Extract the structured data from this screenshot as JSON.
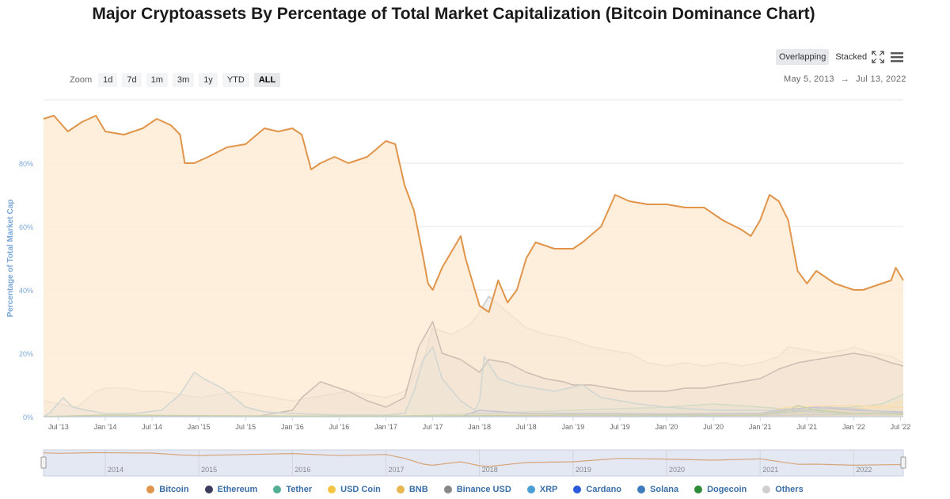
{
  "header": {
    "title": "Major Cryptoassets By Percentage of Total Market Capitalization (Bitcoin Dominance Chart)"
  },
  "toolbar": {
    "modes": [
      {
        "label": "Overlapping",
        "active": true
      },
      {
        "label": "Stacked",
        "active": false
      }
    ],
    "expand_icon": "expand-icon",
    "menu_icon": "menu-icon"
  },
  "zoom": {
    "label": "Zoom",
    "buttons": [
      {
        "label": "1d",
        "active": false
      },
      {
        "label": "7d",
        "active": false
      },
      {
        "label": "1m",
        "active": false
      },
      {
        "label": "3m",
        "active": false
      },
      {
        "label": "1y",
        "active": false
      },
      {
        "label": "YTD",
        "active": false
      },
      {
        "label": "ALL",
        "active": true
      }
    ]
  },
  "date_range": {
    "from": "May 5, 2013",
    "arrow": "→",
    "to": "Jul 13, 2022"
  },
  "chart_data": {
    "type": "area",
    "ylabel": "Percentage of Total Market Cap",
    "ylim": [
      0,
      100
    ],
    "yticks": [
      {
        "value": 0,
        "label": "0%"
      },
      {
        "value": 20,
        "label": "20%"
      },
      {
        "value": 40,
        "label": "40%"
      },
      {
        "value": 60,
        "label": "60%"
      },
      {
        "value": 80,
        "label": "80%"
      }
    ],
    "xlim": [
      2013.34,
      2022.53
    ],
    "xticks": [
      {
        "value": 2013.5,
        "label": "Jul '13"
      },
      {
        "value": 2014.0,
        "label": "Jan '14"
      },
      {
        "value": 2014.5,
        "label": "Jul '14"
      },
      {
        "value": 2015.0,
        "label": "Jan '15"
      },
      {
        "value": 2015.5,
        "label": "Jul '15"
      },
      {
        "value": 2016.0,
        "label": "Jan '16"
      },
      {
        "value": 2016.5,
        "label": "Jul '16"
      },
      {
        "value": 2017.0,
        "label": "Jan '17"
      },
      {
        "value": 2017.5,
        "label": "Jul '17"
      },
      {
        "value": 2018.0,
        "label": "Jan '18"
      },
      {
        "value": 2018.5,
        "label": "Jul '18"
      },
      {
        "value": 2019.0,
        "label": "Jan '19"
      },
      {
        "value": 2019.5,
        "label": "Jul '19"
      },
      {
        "value": 2020.0,
        "label": "Jan '20"
      },
      {
        "value": 2020.5,
        "label": "Jul '20"
      },
      {
        "value": 2021.0,
        "label": "Jan '21"
      },
      {
        "value": 2021.5,
        "label": "Jul '21"
      },
      {
        "value": 2022.0,
        "label": "Jan '22"
      },
      {
        "value": 2022.5,
        "label": "Jul '22"
      }
    ],
    "navigator_labels": [
      {
        "value": 2014,
        "label": "2014"
      },
      {
        "value": 2015,
        "label": "2015"
      },
      {
        "value": 2016,
        "label": "2016"
      },
      {
        "value": 2017,
        "label": "2017"
      },
      {
        "value": 2018,
        "label": "2018"
      },
      {
        "value": 2019,
        "label": "2019"
      },
      {
        "value": 2020,
        "label": "2020"
      },
      {
        "value": 2021,
        "label": "2021"
      },
      {
        "value": 2022,
        "label": "2022"
      }
    ],
    "series": [
      {
        "name": "Others",
        "color": "#c9c9c9",
        "fill": "#dcdcdc",
        "fill_opacity": 0.45,
        "x": [
          2013.34,
          2013.5,
          2013.7,
          2013.9,
          2014.0,
          2014.2,
          2014.4,
          2014.6,
          2014.8,
          2015.0,
          2015.2,
          2015.4,
          2015.6,
          2015.8,
          2016.0,
          2016.2,
          2016.4,
          2016.6,
          2016.8,
          2017.0,
          2017.2,
          2017.4,
          2017.5,
          2017.7,
          2017.9,
          2018.0,
          2018.1,
          2018.3,
          2018.5,
          2018.7,
          2018.9,
          2019.0,
          2019.2,
          2019.4,
          2019.6,
          2019.8,
          2020.0,
          2020.2,
          2020.4,
          2020.6,
          2020.8,
          2021.0,
          2021.2,
          2021.3,
          2021.5,
          2021.7,
          2021.9,
          2022.0,
          2022.2,
          2022.4,
          2022.53
        ],
        "y": [
          5,
          4,
          3,
          8,
          9,
          9,
          8,
          8,
          7,
          6,
          7,
          8,
          7,
          6,
          5,
          6,
          7,
          8,
          7,
          6,
          8,
          18,
          28,
          26,
          29,
          33,
          38,
          33,
          28,
          26,
          25,
          24,
          22,
          21,
          20,
          17,
          16,
          17,
          16,
          17,
          16,
          17,
          19,
          22,
          21,
          20,
          21,
          22,
          20,
          19,
          17
        ]
      },
      {
        "name": "Ethereum",
        "color": "#3c3c5c",
        "fill": "#9a9ab0",
        "fill_opacity": 0.25,
        "x": [
          2013.34,
          2015.6,
          2015.8,
          2016.0,
          2016.1,
          2016.3,
          2016.4,
          2016.6,
          2016.8,
          2017.0,
          2017.2,
          2017.35,
          2017.5,
          2017.6,
          2017.8,
          2018.0,
          2018.1,
          2018.3,
          2018.5,
          2018.7,
          2018.9,
          2019.0,
          2019.2,
          2019.4,
          2019.6,
          2019.8,
          2020.0,
          2020.2,
          2020.4,
          2020.6,
          2020.8,
          2021.0,
          2021.2,
          2021.4,
          2021.6,
          2021.8,
          2022.0,
          2022.2,
          2022.4,
          2022.53
        ],
        "y": [
          0,
          0,
          1,
          2,
          6,
          11,
          10,
          8,
          5,
          3,
          6,
          22,
          30,
          20,
          18,
          14,
          18,
          17,
          14,
          12,
          11,
          10,
          10,
          9,
          8,
          8,
          8,
          9,
          9,
          10,
          11,
          12,
          15,
          17,
          18,
          19,
          20,
          19,
          17,
          16
        ]
      },
      {
        "name": "Tether",
        "color": "#50af95",
        "fill": "#50af95",
        "fill_opacity": 0.2,
        "x": [
          2013.34,
          2017.0,
          2018.0,
          2019.0,
          2020.0,
          2020.5,
          2021.0,
          2021.5,
          2022.0,
          2022.3,
          2022.53
        ],
        "y": [
          0,
          0,
          1,
          2,
          3,
          4,
          3,
          2,
          3,
          4,
          7
        ]
      },
      {
        "name": "USD Coin",
        "color": "#f4c542",
        "fill": "#f4c542",
        "fill_opacity": 0.15,
        "x": [
          2013.34,
          2018.8,
          2020.0,
          2020.8,
          2021.3,
          2022.0,
          2022.3,
          2022.53
        ],
        "y": [
          0,
          0,
          0.3,
          1,
          1.2,
          2.5,
          3,
          5
        ]
      },
      {
        "name": "BNB",
        "color": "#e8b64f",
        "fill": "#e8b64f",
        "fill_opacity": 0.15,
        "x": [
          2013.34,
          2017.5,
          2018.0,
          2019.0,
          2020.0,
          2021.0,
          2021.3,
          2022.0,
          2022.53
        ],
        "y": [
          0,
          0,
          0.5,
          1,
          1,
          1,
          3,
          3.5,
          3
        ]
      },
      {
        "name": "Binance USD",
        "color": "#888888",
        "fill": "#888888",
        "fill_opacity": 0.1,
        "x": [
          2013.34,
          2019.7,
          2021.0,
          2022.0,
          2022.53
        ],
        "y": [
          0,
          0,
          0.3,
          0.8,
          1.5
        ]
      },
      {
        "name": "XRP",
        "color": "#4a9fd4",
        "fill": "#9fc9e6",
        "fill_opacity": 0.3,
        "x": [
          2013.34,
          2013.4,
          2013.55,
          2013.65,
          2013.8,
          2014.0,
          2014.3,
          2014.6,
          2014.8,
          2014.95,
          2015.05,
          2015.25,
          2015.5,
          2015.7,
          2016.0,
          2016.5,
          2017.0,
          2017.2,
          2017.3,
          2017.4,
          2017.5,
          2017.6,
          2017.8,
          2017.95,
          2018.0,
          2018.05,
          2018.2,
          2018.4,
          2018.6,
          2018.8,
          2018.95,
          2019.1,
          2019.3,
          2019.5,
          2019.7,
          2020.0,
          2020.5,
          2021.0,
          2021.3,
          2021.6,
          2022.0,
          2022.53
        ],
        "y": [
          0,
          1,
          6,
          3,
          2,
          1,
          1,
          2,
          7,
          14,
          12,
          9,
          3,
          1.5,
          1,
          0.5,
          0.5,
          1,
          8,
          18,
          22,
          12,
          5,
          2,
          5,
          19,
          12,
          10,
          9,
          8,
          9,
          10,
          6,
          5,
          4,
          3,
          2,
          2,
          2,
          1.5,
          1,
          1
        ]
      },
      {
        "name": "Cardano",
        "color": "#2a5ada",
        "fill": "#2a5ada",
        "fill_opacity": 0.15,
        "x": [
          2013.34,
          2017.8,
          2018.0,
          2018.5,
          2019.0,
          2020.0,
          2021.0,
          2021.2,
          2021.6,
          2022.0,
          2022.53
        ],
        "y": [
          0,
          0,
          2,
          1,
          1,
          0.8,
          1,
          2,
          3,
          2,
          1.5
        ]
      },
      {
        "name": "Solana",
        "color": "#3e7bbd",
        "fill": "#3e7bbd",
        "fill_opacity": 0.15,
        "x": [
          2013.34,
          2020.3,
          2021.0,
          2021.5,
          2021.7,
          2022.0,
          2022.53
        ],
        "y": [
          0,
          0,
          0.5,
          2,
          3,
          2.5,
          1
        ]
      },
      {
        "name": "Dogecoin",
        "color": "#2e8b3a",
        "fill": "#2e8b3a",
        "fill_opacity": 0.15,
        "x": [
          2013.34,
          2014.0,
          2015.0,
          2016.0,
          2017.0,
          2018.0,
          2019.0,
          2020.0,
          2021.0,
          2021.3,
          2021.4,
          2021.6,
          2022.0,
          2022.53
        ],
        "y": [
          0,
          0.5,
          0.3,
          0.2,
          0.2,
          0.3,
          0.5,
          0.4,
          0.5,
          2,
          3.5,
          2,
          1,
          0.8
        ]
      },
      {
        "name": "Bitcoin",
        "color": "#e0954a",
        "fill": "#fde8d0",
        "fill_opacity": 0.75,
        "x": [
          2013.34,
          2013.45,
          2013.6,
          2013.75,
          2013.9,
          2014.0,
          2014.2,
          2014.4,
          2014.55,
          2014.7,
          2014.8,
          2014.85,
          2014.95,
          2015.1,
          2015.3,
          2015.5,
          2015.7,
          2015.85,
          2016.0,
          2016.1,
          2016.2,
          2016.3,
          2016.45,
          2016.6,
          2016.8,
          2017.0,
          2017.1,
          2017.2,
          2017.3,
          2017.4,
          2017.45,
          2017.5,
          2017.6,
          2017.7,
          2017.8,
          2017.85,
          2017.95,
          2018.0,
          2018.1,
          2018.2,
          2018.3,
          2018.4,
          2018.5,
          2018.6,
          2018.8,
          2019.0,
          2019.1,
          2019.3,
          2019.45,
          2019.6,
          2019.8,
          2020.0,
          2020.2,
          2020.4,
          2020.6,
          2020.8,
          2020.9,
          2021.0,
          2021.1,
          2021.2,
          2021.3,
          2021.4,
          2021.5,
          2021.6,
          2021.8,
          2022.0,
          2022.1,
          2022.2,
          2022.3,
          2022.4,
          2022.45,
          2022.53
        ],
        "y": [
          94,
          95,
          90,
          93,
          95,
          90,
          89,
          91,
          94,
          92,
          89,
          80,
          80,
          82,
          85,
          86,
          91,
          90,
          91,
          89,
          78,
          80,
          82,
          80,
          82,
          87,
          86,
          73,
          65,
          50,
          42,
          40,
          47,
          52,
          57,
          50,
          40,
          35,
          33,
          43,
          36,
          40,
          50,
          55,
          53,
          53,
          55,
          60,
          70,
          68,
          67,
          67,
          66,
          66,
          62,
          59,
          57,
          62,
          70,
          68,
          62,
          46,
          42,
          46,
          42,
          40,
          40,
          41,
          42,
          43,
          47,
          43
        ]
      }
    ],
    "navigator": {
      "x": [
        2013.34,
        2013.5,
        2013.9,
        2014.5,
        2014.8,
        2015.0,
        2015.5,
        2016.0,
        2016.5,
        2017.0,
        2017.2,
        2017.4,
        2017.5,
        2017.8,
        2018.0,
        2018.1,
        2018.5,
        2019.0,
        2019.5,
        2020.0,
        2020.5,
        2021.0,
        2021.4,
        2021.6,
        2022.0,
        2022.3,
        2022.53
      ],
      "y": [
        94,
        92,
        95,
        93,
        85,
        82,
        87,
        91,
        82,
        87,
        70,
        45,
        40,
        55,
        38,
        35,
        52,
        55,
        70,
        67,
        62,
        68,
        44,
        45,
        40,
        42,
        43
      ]
    },
    "legend": [
      {
        "name": "Bitcoin",
        "color": "#e0954a"
      },
      {
        "name": "Ethereum",
        "color": "#3c3c5c"
      },
      {
        "name": "Tether",
        "color": "#50af95"
      },
      {
        "name": "USD Coin",
        "color": "#f4c542"
      },
      {
        "name": "BNB",
        "color": "#e8b64f"
      },
      {
        "name": "Binance USD",
        "color": "#888888"
      },
      {
        "name": "XRP",
        "color": "#4a9fd4"
      },
      {
        "name": "Cardano",
        "color": "#2a5ada"
      },
      {
        "name": "Solana",
        "color": "#3e7bbd"
      },
      {
        "name": "Dogecoin",
        "color": "#2e8b3a"
      },
      {
        "name": "Others",
        "color": "#cfcfcf"
      }
    ]
  }
}
